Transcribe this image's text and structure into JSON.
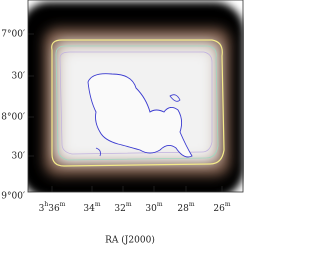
{
  "axes": {
    "x_label": "RA (J2000)",
    "x_ticks": [
      [
        {
          "text": "3",
          "sup": false
        },
        {
          "text": "h",
          "sup": true
        },
        {
          "text": "36",
          "sup": false
        },
        {
          "text": "m",
          "sup": true
        }
      ],
      [
        {
          "text": "34",
          "sup": false
        },
        {
          "text": "m",
          "sup": true
        }
      ],
      [
        {
          "text": "32",
          "sup": false
        },
        {
          "text": "m",
          "sup": true
        }
      ],
      [
        {
          "text": "30",
          "sup": false
        },
        {
          "text": "m",
          "sup": true
        }
      ],
      [
        {
          "text": "28",
          "sup": false
        },
        {
          "text": "m",
          "sup": true
        }
      ],
      [
        {
          "text": "26",
          "sup": false
        },
        {
          "text": "m",
          "sup": true
        }
      ]
    ],
    "y_ticks": [
      "7°00′",
      "30′",
      "8°00′",
      "30′",
      "9°00′"
    ]
  }
}
